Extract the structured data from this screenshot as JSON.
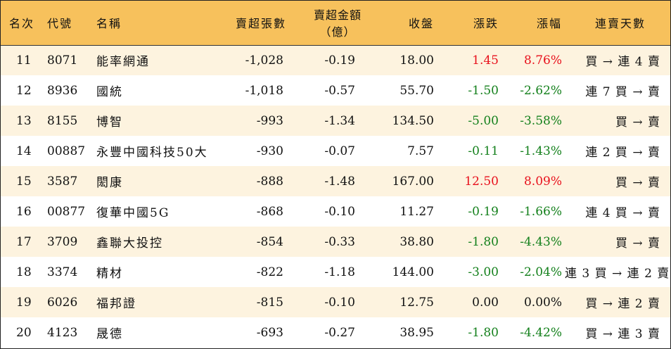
{
  "headers": {
    "rank": "名次",
    "code": "代號",
    "name": "名稱",
    "net_sell_volume": "賣超張數",
    "net_sell_amount_line1": "賣超金額",
    "net_sell_amount_line2": "（億）",
    "close": "收盤",
    "change": "漲跌",
    "change_pct": "漲幅",
    "streak": "連賣天數"
  },
  "colors": {
    "header_bg": "#f7c15c",
    "odd_row_bg": "#fdf3df",
    "up": "#e8101c",
    "down": "#14801c"
  },
  "rows": [
    {
      "rank": "11",
      "code": "8071",
      "name": "能率網通",
      "volume": "-1,028",
      "amount": "-0.19",
      "close": "18.00",
      "change": "1.45",
      "pct": "8.76%",
      "dir": "up",
      "streak": "買 → 連 4 賣"
    },
    {
      "rank": "12",
      "code": "8936",
      "name": "國統",
      "volume": "-1,018",
      "amount": "-0.57",
      "close": "55.70",
      "change": "-1.50",
      "pct": "-2.62%",
      "dir": "down",
      "streak": "連 7 買 → 賣"
    },
    {
      "rank": "13",
      "code": "8155",
      "name": "博智",
      "volume": "-993",
      "amount": "-1.34",
      "close": "134.50",
      "change": "-5.00",
      "pct": "-3.58%",
      "dir": "down",
      "streak": "買 → 賣"
    },
    {
      "rank": "14",
      "code": "00887",
      "name": "永豐中國科技50大",
      "volume": "-930",
      "amount": "-0.07",
      "close": "7.57",
      "change": "-0.11",
      "pct": "-1.43%",
      "dir": "down",
      "streak": "連 2 買 → 賣"
    },
    {
      "rank": "15",
      "code": "3587",
      "name": "閎康",
      "volume": "-888",
      "amount": "-1.48",
      "close": "167.00",
      "change": "12.50",
      "pct": "8.09%",
      "dir": "up",
      "streak": "買 → 賣"
    },
    {
      "rank": "16",
      "code": "00877",
      "name": "復華中國5G",
      "volume": "-868",
      "amount": "-0.10",
      "close": "11.27",
      "change": "-0.19",
      "pct": "-1.66%",
      "dir": "down",
      "streak": "連 4 買 → 賣"
    },
    {
      "rank": "17",
      "code": "3709",
      "name": "鑫聯大投控",
      "volume": "-854",
      "amount": "-0.33",
      "close": "38.80",
      "change": "-1.80",
      "pct": "-4.43%",
      "dir": "down",
      "streak": "買 → 賣"
    },
    {
      "rank": "18",
      "code": "3374",
      "name": "精材",
      "volume": "-822",
      "amount": "-1.18",
      "close": "144.00",
      "change": "-3.00",
      "pct": "-2.04%",
      "dir": "down",
      "streak": "連 3 買 → 連 2 賣"
    },
    {
      "rank": "19",
      "code": "6026",
      "name": "福邦證",
      "volume": "-815",
      "amount": "-0.10",
      "close": "12.75",
      "change": "0.00",
      "pct": "0.00%",
      "dir": "flat",
      "streak": "買 → 連 2 賣"
    },
    {
      "rank": "20",
      "code": "4123",
      "name": "晟德",
      "volume": "-693",
      "amount": "-0.27",
      "close": "38.95",
      "change": "-1.80",
      "pct": "-4.42%",
      "dir": "down",
      "streak": "買 → 連 3 賣"
    }
  ]
}
